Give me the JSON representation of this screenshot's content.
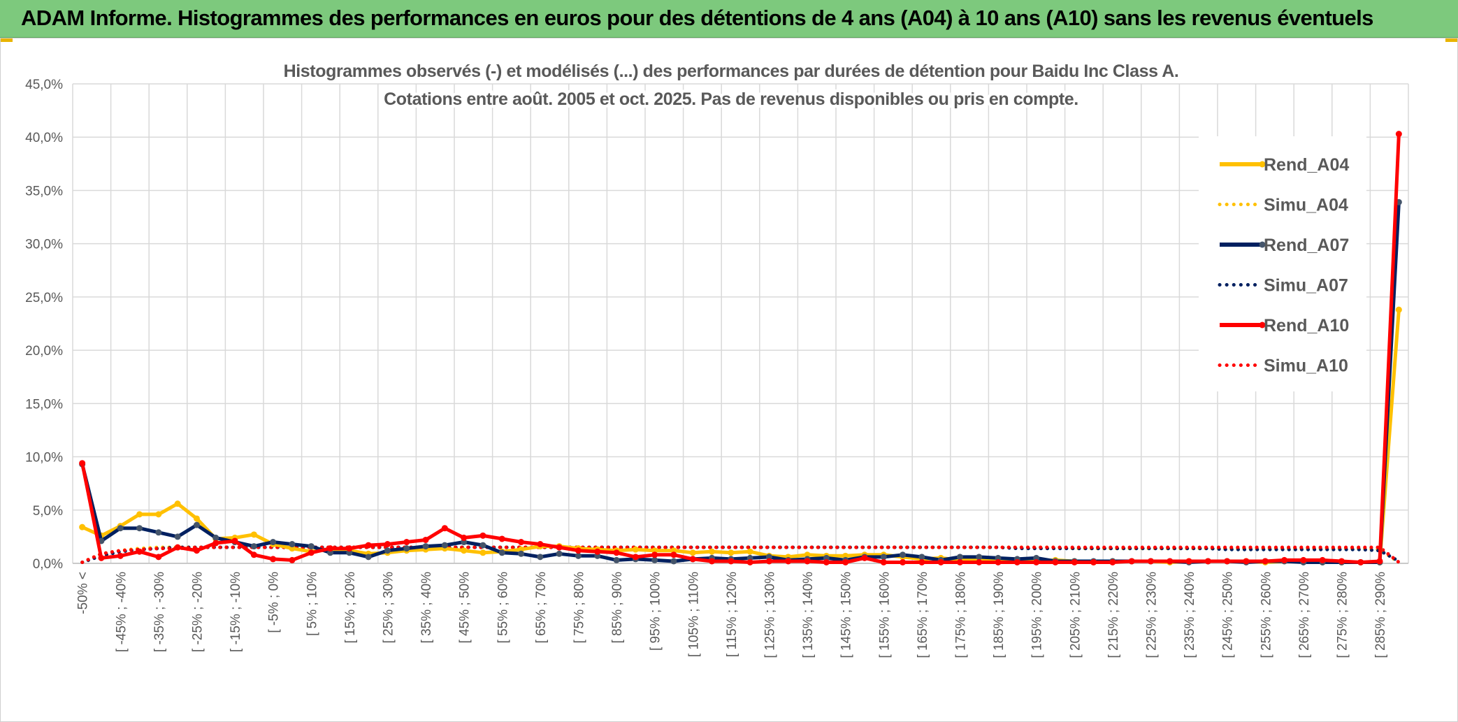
{
  "header": {
    "title": "ADAM Informe. Histogrammes des performances en euros pour des détentions de 4 ans (A04) à 10 ans (A10) sans les revenus éventuels"
  },
  "chart_data": {
    "type": "line",
    "title_lines": [
      "Histogrammes observés (-) et modélisés (...) des performances par durées de détention pour Baidu Inc Class A.",
      "Cotations entre août. 2005 et oct. 2025. Pas de revenus disponibles ou pris en compte."
    ],
    "y_ticks": [
      "0,0%",
      "5,0%",
      "10,0%",
      "15,0%",
      "20,0%",
      "25,0%",
      "30,0%",
      "35,0%",
      "40,0%",
      "45,0%"
    ],
    "ylim": [
      0,
      45
    ],
    "x_tick_labels": [
      "-50% <",
      "[ -45% ; -40%",
      "[ -35% ; -30%",
      "[ -25% ; -20%",
      "[ -15% ; -10%",
      "[ -5% ; 0%",
      "[ 5% ; 10%",
      "[ 15% ; 20%",
      "[ 25% ; 30%",
      "[ 35% ; 40%",
      "[ 45% ; 50%",
      "[ 55% ; 60%",
      "[ 65% ; 70%",
      "[ 75% ; 80%",
      "[ 85% ; 90%",
      "[ 95% ; 100%",
      "[ 105% ; 110%",
      "[ 115% ; 120%",
      "[ 125% ; 130%",
      "[ 135% ; 140%",
      "[ 145% ; 150%",
      "[ 155% ; 160%",
      "[ 165% ; 170%",
      "[ 175% ; 180%",
      "[ 185% ; 190%",
      "[ 195% ; 200%",
      "[ 205% ; 210%",
      "[ 215% ; 220%",
      "[ 225% ; 230%",
      "[ 235% ; 240%",
      "[ 245% ; 250%",
      "[ 255% ; 260%",
      "[ 265% ; 270%",
      "[ 275% ; 280%",
      "[ 285% ; 290%"
    ],
    "n_categories": 70,
    "series": [
      {
        "name": "Rend_A04",
        "style": "solid",
        "color": "#ffc000",
        "values": [
          3.4,
          2.6,
          3.5,
          4.6,
          4.6,
          5.6,
          4.2,
          2.3,
          2.4,
          2.7,
          1.8,
          1.4,
          1.1,
          1.3,
          1.2,
          0.9,
          1.0,
          1.2,
          1.3,
          1.4,
          1.2,
          1.0,
          1.1,
          1.3,
          1.6,
          1.6,
          1.4,
          1.3,
          1.2,
          1.3,
          1.2,
          1.2,
          1.0,
          1.1,
          1.0,
          1.1,
          0.7,
          0.6,
          0.8,
          0.7,
          0.7,
          0.8,
          0.8,
          0.6,
          0.4,
          0.5,
          0.3,
          0.3,
          0.2,
          0.3,
          0.2,
          0.3,
          0.2,
          0.1,
          0.2,
          0.2,
          0.2,
          0.1,
          0.2,
          0.2,
          0.2,
          0.2,
          0.1,
          0.2,
          0.2,
          0.1,
          0.1,
          0.1,
          0.1,
          23.8
        ]
      },
      {
        "name": "Simu_A04",
        "style": "dotted",
        "color": "#ffc000",
        "values": [
          0.1,
          0.9,
          1.2,
          1.4,
          1.5,
          1.5,
          1.5,
          1.5,
          1.5,
          1.5,
          1.5,
          1.5,
          1.5,
          1.5,
          1.5,
          1.5,
          1.5,
          1.5,
          1.5,
          1.5,
          1.5,
          1.5,
          1.5,
          1.5,
          1.5,
          1.5,
          1.5,
          1.5,
          1.5,
          1.5,
          1.5,
          1.5,
          1.5,
          1.5,
          1.5,
          1.5,
          1.5,
          1.5,
          1.5,
          1.5,
          1.5,
          1.5,
          1.5,
          1.5,
          1.5,
          1.5,
          1.5,
          1.5,
          1.5,
          1.5,
          1.5,
          1.5,
          1.4,
          1.4,
          1.4,
          1.4,
          1.4,
          1.4,
          1.4,
          1.4,
          1.4,
          1.4,
          1.4,
          1.4,
          1.4,
          1.4,
          1.4,
          1.4,
          1.3,
          0.1
        ]
      },
      {
        "name": "Rend_A07",
        "style": "solid",
        "color": "#002060",
        "values": [
          9.3,
          2.1,
          3.3,
          3.3,
          2.9,
          2.5,
          3.6,
          2.4,
          2.0,
          1.6,
          2.0,
          1.8,
          1.6,
          1.0,
          1.0,
          0.6,
          1.2,
          1.4,
          1.6,
          1.7,
          2.0,
          1.7,
          1.0,
          0.9,
          0.6,
          0.9,
          0.7,
          0.7,
          0.3,
          0.4,
          0.3,
          0.2,
          0.4,
          0.5,
          0.4,
          0.5,
          0.6,
          0.3,
          0.4,
          0.5,
          0.3,
          0.6,
          0.6,
          0.8,
          0.6,
          0.3,
          0.6,
          0.6,
          0.5,
          0.4,
          0.5,
          0.2,
          0.2,
          0.2,
          0.2,
          0.2,
          0.2,
          0.2,
          0.1,
          0.2,
          0.2,
          0.1,
          0.2,
          0.2,
          0.1,
          0.1,
          0.1,
          0.1,
          0.1,
          33.9
        ]
      },
      {
        "name": "Simu_A07",
        "style": "dotted",
        "color": "#002060",
        "values": [
          0.1,
          0.7,
          1.1,
          1.3,
          1.4,
          1.5,
          1.5,
          1.5,
          1.5,
          1.5,
          1.5,
          1.5,
          1.5,
          1.5,
          1.5,
          1.5,
          1.5,
          1.5,
          1.5,
          1.5,
          1.5,
          1.5,
          1.5,
          1.5,
          1.5,
          1.5,
          1.5,
          1.5,
          1.5,
          1.5,
          1.5,
          1.5,
          1.5,
          1.5,
          1.5,
          1.5,
          1.5,
          1.5,
          1.5,
          1.5,
          1.5,
          1.5,
          1.5,
          1.5,
          1.5,
          1.5,
          1.5,
          1.5,
          1.5,
          1.4,
          1.4,
          1.4,
          1.4,
          1.4,
          1.4,
          1.4,
          1.4,
          1.4,
          1.4,
          1.4,
          1.3,
          1.3,
          1.3,
          1.3,
          1.3,
          1.3,
          1.3,
          1.3,
          1.2,
          0.2
        ]
      },
      {
        "name": "Rend_A10",
        "style": "solid",
        "color": "#ff0000",
        "values": [
          9.4,
          0.5,
          0.7,
          1.1,
          0.6,
          1.5,
          1.2,
          1.9,
          2.1,
          0.8,
          0.4,
          0.3,
          1.0,
          1.4,
          1.4,
          1.7,
          1.8,
          2.0,
          2.2,
          3.3,
          2.4,
          2.6,
          2.3,
          2.0,
          1.8,
          1.5,
          1.2,
          1.1,
          1.0,
          0.6,
          0.8,
          0.8,
          0.4,
          0.2,
          0.2,
          0.1,
          0.2,
          0.2,
          0.2,
          0.1,
          0.1,
          0.5,
          0.1,
          0.1,
          0.1,
          0.1,
          0.1,
          0.1,
          0.1,
          0.1,
          0.1,
          0.1,
          0.1,
          0.1,
          0.1,
          0.2,
          0.2,
          0.2,
          0.2,
          0.2,
          0.2,
          0.2,
          0.2,
          0.3,
          0.3,
          0.3,
          0.2,
          0.1,
          0.2,
          40.3
        ]
      },
      {
        "name": "Simu_A10",
        "style": "dotted",
        "color": "#ff0000",
        "values": [
          0.1,
          0.9,
          1.2,
          1.3,
          1.4,
          1.4,
          1.5,
          1.5,
          1.5,
          1.5,
          1.5,
          1.5,
          1.5,
          1.5,
          1.5,
          1.5,
          1.5,
          1.5,
          1.5,
          1.5,
          1.5,
          1.5,
          1.5,
          1.5,
          1.5,
          1.5,
          1.5,
          1.5,
          1.5,
          1.5,
          1.5,
          1.5,
          1.5,
          1.5,
          1.5,
          1.5,
          1.5,
          1.5,
          1.5,
          1.5,
          1.5,
          1.5,
          1.5,
          1.5,
          1.5,
          1.5,
          1.5,
          1.5,
          1.5,
          1.5,
          1.5,
          1.5,
          1.5,
          1.5,
          1.5,
          1.5,
          1.5,
          1.5,
          1.5,
          1.5,
          1.5,
          1.5,
          1.5,
          1.5,
          1.5,
          1.5,
          1.5,
          1.5,
          1.5,
          0.1
        ]
      }
    ],
    "legend": {
      "position": "right"
    }
  }
}
